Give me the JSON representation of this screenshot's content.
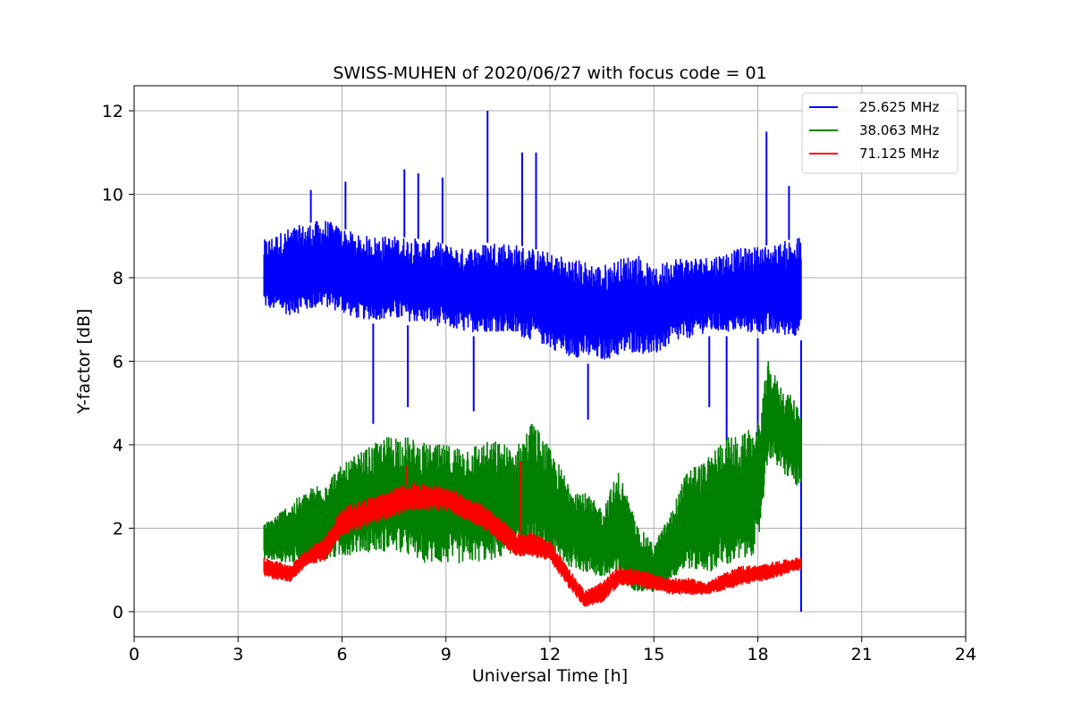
{
  "chart_data": {
    "type": "line",
    "title": "SWISS-MUHEN of 2020/06/27 with focus code = 01",
    "xlabel": "Universal Time [h]",
    "ylabel": "Y-factor [dB]",
    "xlim": [
      0,
      24
    ],
    "ylim": [
      -0.6,
      12.6
    ],
    "x_ticks": [
      0,
      3,
      6,
      9,
      12,
      15,
      18,
      21,
      24
    ],
    "x_tick_labels": [
      "0",
      "3",
      "6",
      "9",
      "12",
      "15",
      "18",
      "21",
      "24"
    ],
    "y_ticks": [
      0,
      2,
      4,
      6,
      8,
      10,
      12
    ],
    "y_tick_labels": [
      "0",
      "2",
      "4",
      "6",
      "8",
      "10",
      "12"
    ],
    "grid": true,
    "legend_position": "top-right",
    "series": [
      {
        "name": "25.625 MHz",
        "color": "#0000ff",
        "x": [
          3.75,
          4.5,
          5.5,
          6.5,
          7.5,
          8.5,
          9.5,
          10.5,
          11.5,
          12.5,
          13.5,
          14.5,
          15.0,
          15.5,
          16.5,
          17.5,
          18.5,
          19.25
        ],
        "y_low": [
          7.2,
          7.0,
          7.2,
          6.9,
          6.9,
          6.8,
          6.6,
          6.6,
          6.4,
          6.0,
          5.9,
          6.1,
          6.0,
          6.3,
          6.6,
          6.6,
          6.5,
          6.5
        ],
        "y_high": [
          8.9,
          9.2,
          9.4,
          9.0,
          9.0,
          8.9,
          8.7,
          8.9,
          8.7,
          8.5,
          8.3,
          8.6,
          8.2,
          8.5,
          8.5,
          8.7,
          8.8,
          9.0
        ],
        "spikes": [
          [
            5.1,
            10.1
          ],
          [
            6.1,
            10.3
          ],
          [
            7.8,
            10.6
          ],
          [
            8.2,
            10.5
          ],
          [
            8.9,
            10.4
          ],
          [
            10.2,
            12.0
          ],
          [
            11.2,
            11.0
          ],
          [
            11.6,
            11.0
          ],
          [
            18.25,
            11.5
          ],
          [
            18.9,
            10.2
          ]
        ],
        "dips": [
          [
            6.9,
            4.5
          ],
          [
            7.9,
            4.9
          ],
          [
            9.8,
            4.8
          ],
          [
            13.1,
            4.6
          ],
          [
            16.6,
            4.9
          ],
          [
            17.1,
            4.1
          ],
          [
            18.0,
            4.2
          ],
          [
            19.25,
            0.0
          ]
        ]
      },
      {
        "name": "38.063 MHz",
        "color": "#008000",
        "x": [
          3.75,
          4.5,
          5.5,
          6.5,
          7.5,
          8.5,
          9.5,
          10.5,
          11.0,
          11.5,
          12.5,
          13.5,
          14.0,
          14.5,
          15.0,
          15.5,
          16.0,
          16.5,
          17.0,
          17.5,
          18.0,
          18.3,
          18.6,
          19.25
        ],
        "y_low": [
          1.2,
          1.1,
          1.1,
          1.3,
          1.3,
          1.0,
          1.0,
          1.1,
          1.3,
          1.2,
          1.0,
          0.7,
          0.6,
          0.4,
          0.4,
          0.7,
          0.9,
          0.8,
          0.9,
          1.0,
          1.3,
          3.6,
          3.3,
          2.8
        ],
        "y_high": [
          2.1,
          2.6,
          3.2,
          3.8,
          4.3,
          4.0,
          4.0,
          4.1,
          3.9,
          4.6,
          3.2,
          2.5,
          3.4,
          2.1,
          1.6,
          2.4,
          3.5,
          3.6,
          4.2,
          4.2,
          4.5,
          6.0,
          5.5,
          4.9
        ]
      },
      {
        "name": "71.125 MHz",
        "color": "#ff0000",
        "x": [
          3.75,
          4.5,
          5.0,
          5.5,
          6.0,
          7.0,
          8.0,
          9.0,
          10.0,
          10.5,
          11.0,
          11.5,
          12.0,
          12.5,
          13.0,
          13.5,
          14.0,
          14.5,
          15.0,
          15.5,
          16.0,
          16.5,
          17.0,
          17.5,
          18.0,
          18.5,
          19.25
        ],
        "y_low": [
          0.8,
          0.7,
          1.1,
          1.2,
          1.8,
          2.1,
          2.4,
          2.4,
          2.0,
          1.7,
          1.3,
          1.3,
          1.2,
          0.6,
          0.1,
          0.2,
          0.6,
          0.6,
          0.5,
          0.4,
          0.4,
          0.4,
          0.5,
          0.6,
          0.7,
          0.8,
          1.0
        ],
        "y_high": [
          1.3,
          1.1,
          1.5,
          1.8,
          2.5,
          2.8,
          3.1,
          3.0,
          2.6,
          2.3,
          1.9,
          1.9,
          1.7,
          1.1,
          0.5,
          0.7,
          1.1,
          1.0,
          0.9,
          0.8,
          0.8,
          0.7,
          0.9,
          1.1,
          1.1,
          1.2,
          1.3
        ],
        "spikes": [
          [
            7.85,
            3.5
          ],
          [
            11.15,
            3.6
          ]
        ]
      }
    ]
  }
}
